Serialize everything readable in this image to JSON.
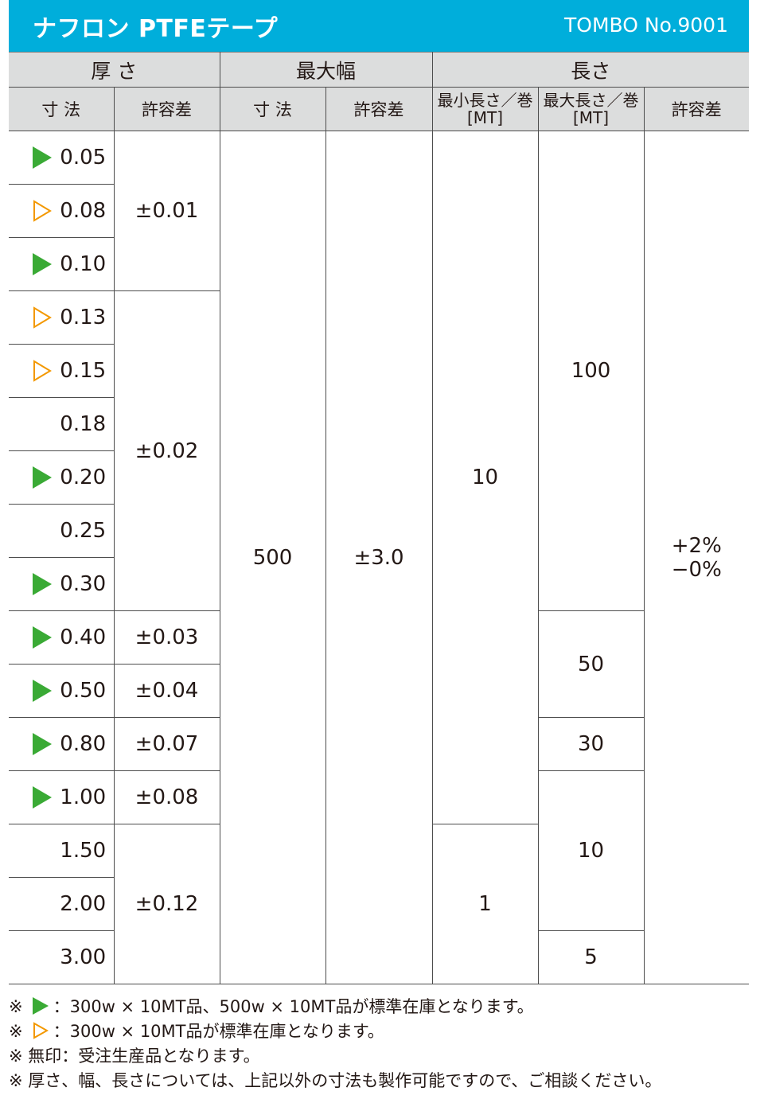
{
  "header": {
    "title": "ナフロン PTFEテープ",
    "product_code": "TOMBO No.9001",
    "background_color": "#00aedb"
  },
  "table": {
    "group_headers": {
      "thickness": "厚 さ",
      "max_width": "最大幅",
      "length": "長さ"
    },
    "sub_headers": {
      "size": "寸 法",
      "tolerance": "許容差",
      "width_size": "寸 法",
      "width_tolerance": "許容差",
      "min_length_line1": "最小長さ／巻",
      "min_length_line2": "[MT]",
      "max_length_line1": "最大長さ／巻",
      "max_length_line2": "[MT]",
      "length_tolerance": "許容差"
    },
    "rows": [
      {
        "size": "0.05",
        "mark": "green-solid"
      },
      {
        "size": "0.08",
        "mark": "orange-outline"
      },
      {
        "size": "0.10",
        "mark": "green-solid"
      },
      {
        "size": "0.13",
        "mark": "orange-outline"
      },
      {
        "size": "0.15",
        "mark": "orange-outline"
      },
      {
        "size": "0.18",
        "mark": "none"
      },
      {
        "size": "0.20",
        "mark": "green-solid"
      },
      {
        "size": "0.25",
        "mark": "none"
      },
      {
        "size": "0.30",
        "mark": "green-solid"
      },
      {
        "size": "0.40",
        "mark": "green-solid"
      },
      {
        "size": "0.50",
        "mark": "green-solid"
      },
      {
        "size": "0.80",
        "mark": "green-solid"
      },
      {
        "size": "1.00",
        "mark": "green-solid"
      },
      {
        "size": "1.50",
        "mark": "none"
      },
      {
        "size": "2.00",
        "mark": "none"
      },
      {
        "size": "3.00",
        "mark": "none"
      }
    ],
    "thickness_tolerances": [
      "±0.01",
      "±0.02",
      "±0.03",
      "±0.04",
      "±0.07",
      "±0.08",
      "±0.12"
    ],
    "width_size": "500",
    "width_tolerance": "±3.0",
    "min_lengths": [
      "10",
      "1"
    ],
    "max_lengths": [
      "100",
      "50",
      "30",
      "10",
      "5"
    ],
    "length_tolerance_line1": "+2%",
    "length_tolerance_line2": "−0%",
    "mark_colors": {
      "green": "#3aaa35",
      "orange": "#f39800"
    },
    "header_background": "#dcdddd"
  },
  "notes": {
    "prefix": "※",
    "green_note": "：300w × 10MT品、500w × 10MT品が標準在庫となります。",
    "orange_note": "：300w × 10MT品が標準在庫となります。",
    "unmarked_note": "無印：受注生産品となります。",
    "custom_note": "厚さ、幅、長さについては、上記以外の寸法も製作可能ですので、ご相談ください。"
  }
}
